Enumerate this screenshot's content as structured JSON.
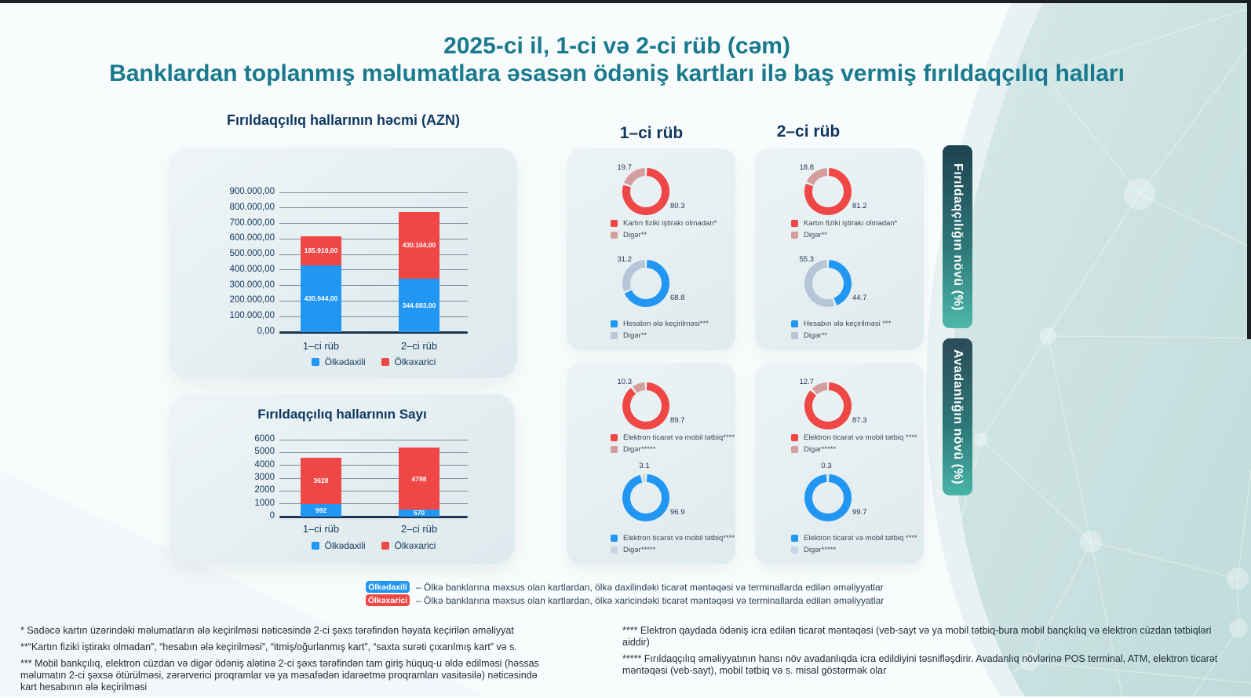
{
  "title": {
    "line1": "2025-ci il, 1-ci və 2-ci rüb (cəm)",
    "line2": "Banklardan toplanmış məlumatlara əsasən ödəniş kartları ilə baş vermiş fırıldaqçılıq halları"
  },
  "colors": {
    "blue": "#2196f3",
    "red": "#ef4646",
    "pink": "#d59e9e",
    "grayblue": "#b7c6d7",
    "lightblue": "#c6d4e3",
    "navy": "#11365e",
    "teal_title": "#19798d"
  },
  "chart_data": [
    {
      "type": "bar",
      "id": "volume",
      "title": "Fırıldaqçılıq hallarının həcmi (AZN)",
      "categories": [
        "1–ci rüb",
        "2–ci rüb"
      ],
      "series": [
        {
          "name": "Ölkədaxili",
          "color": "blue",
          "values": [
            430944,
            344083
          ],
          "value_labels": [
            "430.944,00",
            "344.083,00"
          ]
        },
        {
          "name": "Ölkəxarici",
          "color": "red",
          "values": [
            185910,
            430104
          ],
          "value_labels": [
            "185.910,00",
            "430.104,00"
          ]
        }
      ],
      "ylim": [
        0,
        900000
      ],
      "ytick_labels": [
        "900.000,00",
        "800.000,00",
        "700.000,00",
        "600.000,00",
        "500.000,00",
        "400.000,00",
        "300.000,00",
        "200.000,00",
        "100.000,00",
        "0,00"
      ]
    },
    {
      "type": "bar",
      "id": "count",
      "title": "Fırıldaqçılıq hallarının Sayı",
      "categories": [
        "1–ci rüb",
        "2–ci rüb"
      ],
      "series": [
        {
          "name": "Ölkədaxili",
          "color": "blue",
          "values": [
            992,
            570
          ],
          "value_labels": [
            "992",
            "570"
          ]
        },
        {
          "name": "Ölkəxarici",
          "color": "red",
          "values": [
            3628,
            4798
          ],
          "value_labels": [
            "3628",
            "4798"
          ]
        }
      ],
      "ylim": [
        0,
        6000
      ],
      "ytick_labels": [
        "6000",
        "5000",
        "4000",
        "3000",
        "2000",
        "1000",
        "0"
      ]
    },
    {
      "type": "donut-grid",
      "columns": [
        "1–ci rüb",
        "2–ci rüb"
      ],
      "rows": [
        "Fırıldaqçılığın növü (%)",
        "Avadanlığın növü (%)"
      ],
      "cards": [
        {
          "quarter": "1–ci rüb",
          "row": "fraud-type",
          "donuts": [
            {
              "primary": {
                "label": "Kartın fiziki iştirakı olmadan*",
                "pct": 80.3,
                "color": "red"
              },
              "secondary": {
                "label": "Digər**",
                "pct": 19.7,
                "color": "pink"
              }
            },
            {
              "primary": {
                "label": "Hesabın ələ keçirilməsi***",
                "pct": 68.8,
                "color": "blue"
              },
              "secondary": {
                "label": "Digər**",
                "pct": 31.2,
                "color": "grayblue"
              }
            }
          ]
        },
        {
          "quarter": "2–ci rüb",
          "row": "fraud-type",
          "donuts": [
            {
              "primary": {
                "label": "Kartın fiziki iştirakı olmadan*",
                "pct": 81.2,
                "color": "red"
              },
              "secondary": {
                "label": "Digər**",
                "pct": 18.8,
                "color": "pink"
              }
            },
            {
              "primary": {
                "label": "Hesabın ələ keçirilməsi ***",
                "pct": 44.7,
                "color": "blue"
              },
              "secondary": {
                "label": "Digər**",
                "pct": 55.3,
                "color": "grayblue"
              }
            }
          ]
        },
        {
          "quarter": "1–ci rüb",
          "row": "equipment-type",
          "donuts": [
            {
              "primary": {
                "label": "Elektron ticarət və mobil tətbiq****",
                "pct": 89.7,
                "color": "red"
              },
              "secondary": {
                "label": "Digər*****",
                "pct": 10.3,
                "color": "pink"
              }
            },
            {
              "primary": {
                "label": "Elektron ticarət və mobil tətbiq****",
                "pct": 96.9,
                "color": "blue"
              },
              "secondary": {
                "label": "Digər*****",
                "pct": 3.1,
                "color": "lightblue"
              }
            }
          ]
        },
        {
          "quarter": "2–ci rüb",
          "row": "equipment-type",
          "donuts": [
            {
              "primary": {
                "label": "Elektron ticarət və mobil tətbiq ****",
                "pct": 87.3,
                "color": "red"
              },
              "secondary": {
                "label": "Digər*****",
                "pct": 12.7,
                "color": "pink"
              }
            },
            {
              "primary": {
                "label": "Elektron ticarət və mobil tətbiq ****",
                "pct": 99.7,
                "color": "blue"
              },
              "secondary": {
                "label": "Digər*****",
                "pct": 0.3,
                "color": "lightblue"
              }
            }
          ]
        }
      ]
    }
  ],
  "bottom_legend": [
    {
      "badge": "Ölkədaxili",
      "color": "blue",
      "text": "– Ölkə banklarına məxsus olan kartlardan, ölkə daxilindəki ticarət məntəqəsi və terminallarda edilən əməliyyatlar"
    },
    {
      "badge": "Ölkəxarici",
      "color": "red",
      "text": "– Ölkə banklarına məxsus olan kartlardan, ölkə xaricindəki ticarət məntəqəsi və terminallarda edilən əməliyyatlar"
    }
  ],
  "footnotes": {
    "left": [
      "* Sadəcə kartın üzərindəki məlumatların ələ keçirilməsi nəticəsində 2-ci şəxs tərəfindən həyata keçirilən əməliyyat",
      "**“Kartın fiziki iştirakı olmadan”, “hesabın ələ keçirilməsi”, “itmiş/oğurlanmış kart”, “saxta surəti çıxarılmış kart” və s.",
      "*** Mobil bankçılıq, elektron cüzdan və digər ödəniş alətinə 2-ci şəxs tərəfindən tam giriş hüquq-u əldə edilməsi (həssas məlumatın 2-ci şəxsə ötürülməsi, zərərverici proqramlar və ya məsafədən idarəetmə proqramları vasitəsilə) nəticəsində kart hesabının ələ keçirilməsi"
    ],
    "right": [
      "**** Elektron qaydada ödəniş icra edilən ticarət məntəqəsi (veb-sayt və ya mobil tətbiq-bura mobil bançkılıq və elektron cüzdan tətbiqləri aiddir)",
      "***** Fırıldaqçılıq əməliyyatının hansı növ avadanlıqda icra edildiyini təsnifləşdirir. Avadanlıq növlərinə POS terminal, ATM, elektron ticarət məntəqəsi (veb-sayt), mobil tətbiq və s. misal göstərmək olar"
    ]
  }
}
